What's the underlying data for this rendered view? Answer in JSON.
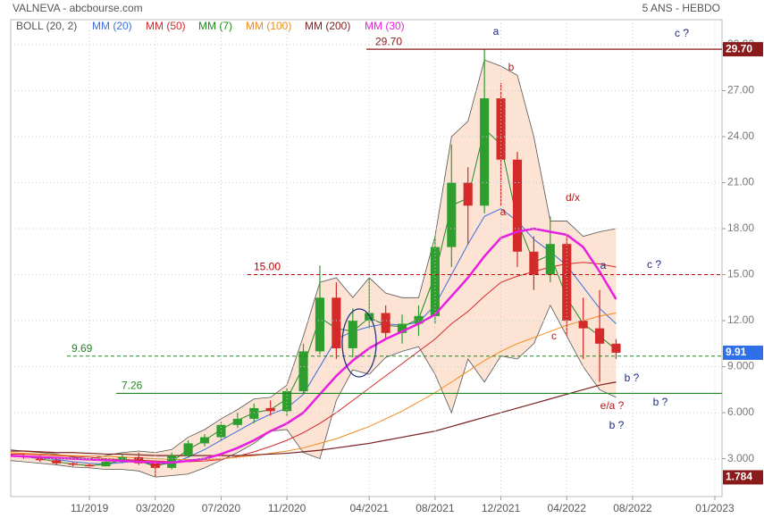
{
  "chart_data": {
    "type": "candlestick",
    "title": "VALNEVA - abcbourse.com",
    "subtitle": "5 ANS - HEBDO",
    "x": [
      "06/2019",
      "07/2019",
      "08/2019",
      "09/2019",
      "10/2019",
      "11/2019",
      "12/2019",
      "01/2020",
      "02/2020",
      "03/2020",
      "04/2020",
      "05/2020",
      "06/2020",
      "07/2020",
      "08/2020",
      "09/2020",
      "10/2020",
      "11/2020",
      "12/2020",
      "01/2021",
      "02/2021",
      "03/2021",
      "04/2021",
      "05/2021",
      "06/2021",
      "07/2021",
      "08/2021",
      "09/2021",
      "10/2021",
      "11/2021",
      "12/2021",
      "01/2022",
      "02/2022",
      "03/2022",
      "04/2022",
      "05/2022",
      "06/2022",
      "07/2022"
    ],
    "open": [
      3.3,
      3.2,
      3.1,
      2.9,
      2.7,
      2.6,
      2.5,
      2.8,
      3.1,
      2.7,
      2.4,
      3.2,
      4.0,
      4.4,
      5.2,
      5.6,
      6.3,
      6.1,
      7.4,
      10.0,
      13.5,
      10.2,
      12.0,
      12.5,
      11.2,
      11.8,
      12.3,
      16.8,
      21.0,
      19.5,
      26.5,
      22.5,
      16.5,
      15.0,
      17.0,
      12.0,
      11.5,
      10.5
    ],
    "high": [
      3.4,
      3.3,
      3.2,
      3.0,
      2.8,
      2.7,
      2.9,
      3.3,
      3.4,
      2.8,
      3.4,
      4.2,
      4.6,
      5.4,
      6.0,
      6.6,
      6.8,
      7.6,
      10.5,
      15.6,
      14.5,
      12.8,
      14.8,
      13.0,
      12.4,
      13.0,
      17.5,
      23.5,
      22.0,
      29.7,
      27.5,
      23.0,
      17.5,
      18.8,
      17.5,
      13.5,
      14.0,
      10.8
    ],
    "low": [
      3.1,
      3.0,
      2.8,
      2.6,
      2.5,
      2.4,
      2.5,
      2.7,
      2.6,
      1.784,
      2.3,
      3.1,
      3.8,
      4.2,
      5.0,
      5.3,
      5.8,
      5.8,
      7.2,
      9.8,
      9.5,
      9.6,
      11.5,
      10.8,
      10.5,
      11.0,
      11.8,
      15.5,
      17.0,
      19.0,
      19.5,
      15.5,
      14.0,
      14.5,
      11.0,
      9.5,
      8.0,
      9.5
    ],
    "close": [
      3.2,
      3.1,
      2.9,
      2.7,
      2.6,
      2.5,
      2.8,
      3.1,
      2.7,
      2.4,
      3.2,
      4.0,
      4.4,
      5.2,
      5.6,
      6.3,
      6.1,
      7.4,
      10.0,
      13.5,
      10.2,
      12.0,
      12.5,
      11.2,
      11.8,
      12.3,
      16.8,
      21.0,
      19.5,
      26.5,
      22.5,
      16.5,
      15.0,
      17.0,
      12.0,
      11.5,
      10.5,
      9.91
    ],
    "up_color": "#2e9e2e",
    "down_color": "#d42a2a",
    "bollinger": {
      "name": "BOLL (20, 2)",
      "color": "#555555",
      "fill": "#fde3d3",
      "upper": [
        3.6,
        3.5,
        3.4,
        3.3,
        3.1,
        3.0,
        3.2,
        3.4,
        3.5,
        3.4,
        3.6,
        4.4,
        4.9,
        5.6,
        6.2,
        6.9,
        7.0,
        7.8,
        11.0,
        14.5,
        14.8,
        13.5,
        14.8,
        13.8,
        13.5,
        13.5,
        17.5,
        24.0,
        25.0,
        29.0,
        28.6,
        28.0,
        24.0,
        18.5,
        18.5,
        17.5,
        17.8,
        18.0
      ],
      "lower": [
        2.9,
        2.8,
        2.7,
        2.6,
        2.45,
        2.4,
        2.3,
        2.3,
        2.2,
        1.8,
        1.9,
        2.0,
        2.4,
        2.9,
        3.4,
        4.0,
        4.8,
        4.9,
        3.4,
        3.0,
        6.8,
        8.8,
        8.5,
        9.6,
        10.0,
        10.3,
        8.5,
        6.0,
        9.5,
        8.0,
        9.7,
        9.5,
        10.5,
        13.0,
        11.0,
        9.0,
        7.5,
        7.0
      ]
    },
    "series": [
      {
        "name": "MM (20)",
        "color": "#3b6fe0",
        "width": 1,
        "values": [
          3.2,
          3.15,
          3.05,
          2.95,
          2.8,
          2.7,
          2.65,
          2.75,
          2.85,
          2.6,
          2.7,
          3.1,
          3.6,
          4.2,
          4.8,
          5.4,
          5.9,
          6.3,
          7.2,
          9.0,
          10.8,
          11.3,
          11.6,
          11.8,
          11.7,
          11.9,
          13.0,
          15.0,
          17.0,
          18.8,
          19.3,
          18.5,
          17.3,
          16.5,
          15.6,
          14.2,
          12.8,
          11.8
        ]
      },
      {
        "name": "MM (50)",
        "color": "#d42a2a",
        "width": 1,
        "values": [
          3.3,
          3.3,
          3.25,
          3.2,
          3.15,
          3.1,
          3.0,
          2.95,
          2.9,
          2.85,
          2.8,
          2.8,
          2.85,
          2.95,
          3.15,
          3.45,
          3.8,
          4.2,
          4.7,
          5.3,
          6.0,
          6.8,
          7.6,
          8.4,
          9.2,
          10.0,
          10.8,
          11.8,
          12.6,
          13.6,
          14.5,
          14.9,
          15.2,
          15.5,
          15.7,
          15.8,
          15.7,
          15.5
        ]
      },
      {
        "name": "MM (7)",
        "color": "#1f8a1f",
        "width": 1,
        "values": [
          3.25,
          3.15,
          3.0,
          2.8,
          2.65,
          2.55,
          2.65,
          2.9,
          2.85,
          2.5,
          2.8,
          3.6,
          4.2,
          4.9,
          5.5,
          6.0,
          6.2,
          6.9,
          9.0,
          12.2,
          11.5,
          11.3,
          12.2,
          11.7,
          11.6,
          12.1,
          15.0,
          19.5,
          20.0,
          24.5,
          23.5,
          18.5,
          15.8,
          16.3,
          13.5,
          11.8,
          11.0,
          10.1
        ]
      },
      {
        "name": "MM (100)",
        "color": "#f08c1e",
        "width": 1,
        "values": [
          3.4,
          3.35,
          3.3,
          3.25,
          3.2,
          3.2,
          3.15,
          3.1,
          3.05,
          3.0,
          2.95,
          2.95,
          2.95,
          3.0,
          3.1,
          3.2,
          3.35,
          3.5,
          3.7,
          4.0,
          4.3,
          4.7,
          5.1,
          5.6,
          6.1,
          6.7,
          7.3,
          8.0,
          8.7,
          9.4,
          10.0,
          10.5,
          10.9,
          11.3,
          11.7,
          12.0,
          12.3,
          12.5
        ]
      },
      {
        "name": "MM (200)",
        "color": "#7a1f1f",
        "width": 1.2,
        "values": [
          3.5,
          3.5,
          3.45,
          3.4,
          3.4,
          3.35,
          3.3,
          3.3,
          3.25,
          3.2,
          3.2,
          3.2,
          3.2,
          3.2,
          3.2,
          3.25,
          3.3,
          3.35,
          3.45,
          3.55,
          3.7,
          3.85,
          4.0,
          4.2,
          4.4,
          4.6,
          4.8,
          5.1,
          5.4,
          5.7,
          6.0,
          6.3,
          6.6,
          6.9,
          7.2,
          7.5,
          7.8,
          8.0
        ]
      },
      {
        "name": "MM (30)",
        "color": "#e81ee0",
        "width": 2.5,
        "values": [
          3.2,
          3.15,
          3.1,
          3.05,
          3.0,
          2.95,
          2.9,
          2.85,
          2.8,
          2.75,
          2.75,
          2.85,
          3.0,
          3.3,
          3.7,
          4.2,
          4.8,
          5.3,
          6.0,
          7.2,
          8.4,
          9.4,
          10.2,
          10.8,
          11.3,
          11.8,
          12.4,
          13.6,
          14.8,
          16.2,
          17.4,
          17.8,
          18.0,
          17.8,
          17.6,
          16.8,
          15.2,
          13.4
        ]
      }
    ],
    "xlim": [
      "06/2019",
      "01/2023"
    ],
    "xticks": [
      "11/2019",
      "03/2020",
      "07/2020",
      "11/2020",
      "04/2021",
      "08/2021",
      "12/2021",
      "04/2022",
      "08/2022",
      "01/2023"
    ],
    "ylim": [
      0.53,
      31.63
    ],
    "yticks": [
      {
        "value": 30,
        "label": "30.00"
      },
      {
        "value": 27,
        "label": "27.00"
      },
      {
        "value": 24,
        "label": "24.00"
      },
      {
        "value": 21,
        "label": "21.00"
      },
      {
        "value": 18,
        "label": "18.00"
      },
      {
        "value": 15,
        "label": "15.00"
      },
      {
        "value": 12,
        "label": "12.00"
      },
      {
        "value": 9,
        "label": "9.000"
      },
      {
        "value": 6,
        "label": "6.000"
      },
      {
        "value": 3,
        "label": "3.000"
      }
    ],
    "grid": true,
    "hlines": [
      {
        "value": 29.7,
        "label": "29.70",
        "color": "#8b1a1a",
        "style": "solid"
      },
      {
        "value": 15,
        "label": "15.00",
        "color": "#c00000",
        "style": "dashed"
      },
      {
        "value": 9.69,
        "label": "9.69",
        "color": "#1f8a1f",
        "style": "dashed"
      },
      {
        "value": 7.26,
        "label": "7.26",
        "color": "#1f8a1f",
        "style": "solid"
      }
    ],
    "price_tags": [
      {
        "value": 29.7,
        "label": "29.70",
        "color": "#8b1a1a"
      },
      {
        "value": 9.91,
        "label": "9.91",
        "color": "#2f6fe8"
      },
      {
        "value": 1.784,
        "label": "1.784",
        "color": "#8b1a1a"
      }
    ],
    "annotations": [
      {
        "text": "a",
        "color": "#1f2a80"
      },
      {
        "text": "c ?",
        "color": "#1f2a80"
      },
      {
        "text": "b",
        "color": "#b01c1c"
      },
      {
        "text": "a",
        "color": "#b01c1c"
      },
      {
        "text": "d/x",
        "color": "#b01c1c"
      },
      {
        "text": "a",
        "color": "#1f2a80"
      },
      {
        "text": "c ?",
        "color": "#1f2a80"
      },
      {
        "text": "c",
        "color": "#b01c1c"
      },
      {
        "text": "b ?",
        "color": "#1f2a80"
      },
      {
        "text": "b ?",
        "color": "#1f2a80"
      },
      {
        "text": "e/a ?",
        "color": "#b01c1c"
      },
      {
        "text": "b ?",
        "color": "#1f2a80"
      }
    ]
  }
}
